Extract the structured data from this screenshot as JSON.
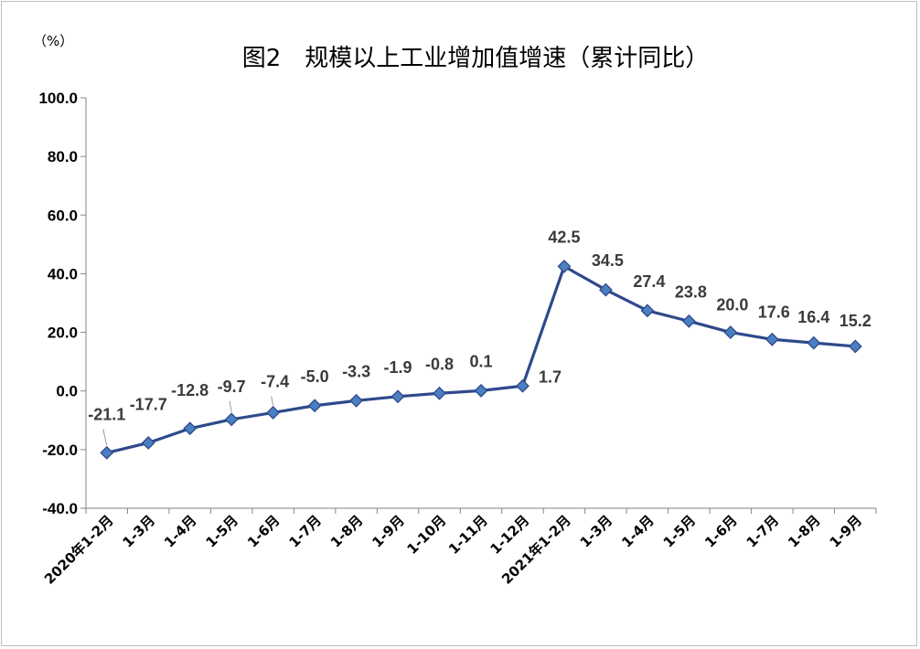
{
  "chart_data": {
    "type": "line",
    "title": "图2　规模以上工业增加值增速（累计同比）",
    "unit_label": "（%）",
    "categories": [
      "2020年1-2月",
      "1-3月",
      "1-4月",
      "1-5月",
      "1-6月",
      "1-7月",
      "1-8月",
      "1-9月",
      "1-10月",
      "1-11月",
      "1-12月",
      "2021年1-2月",
      "1-3月",
      "1-4月",
      "1-5月",
      "1-6月",
      "1-7月",
      "1-8月",
      "1-9月"
    ],
    "series": [
      {
        "values": [
          -21.1,
          -17.7,
          -12.8,
          -9.7,
          -7.4,
          -5.0,
          -3.3,
          -1.9,
          -0.8,
          0.1,
          1.7,
          42.5,
          34.5,
          27.4,
          23.8,
          20.0,
          17.6,
          16.4,
          15.2
        ]
      }
    ],
    "data_labels": [
      "-21.1",
      "-17.7",
      "-12.8",
      "-9.7",
      "-7.4",
      "-5.0",
      "-3.3",
      "-1.9",
      "-0.8",
      "0.1",
      "1.7",
      "42.5",
      "34.5",
      "27.4",
      "23.8",
      "20.0",
      "17.6",
      "16.4",
      "15.2"
    ],
    "ylim": [
      -40,
      100
    ],
    "yticks": [
      -40,
      -20,
      0,
      20,
      40,
      60,
      80,
      100
    ],
    "ytick_labels": [
      "-40.0",
      "-20.0",
      "0.0",
      "20.0",
      "40.0",
      "60.0",
      "80.0",
      "100.0"
    ],
    "grid": false,
    "legend": "none",
    "line_color": "#2e4a8b",
    "marker_color": "#4a7fc1"
  }
}
